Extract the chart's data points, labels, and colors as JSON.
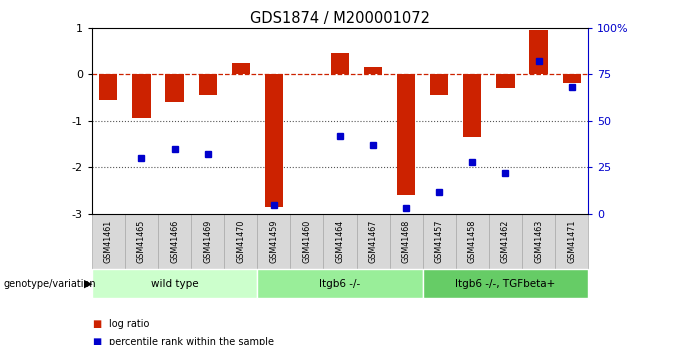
{
  "title": "GDS1874 / M200001072",
  "samples": [
    "GSM41461",
    "GSM41465",
    "GSM41466",
    "GSM41469",
    "GSM41470",
    "GSM41459",
    "GSM41460",
    "GSM41464",
    "GSM41467",
    "GSM41468",
    "GSM41457",
    "GSM41458",
    "GSM41462",
    "GSM41463",
    "GSM41471"
  ],
  "log_ratio": [
    -0.55,
    -0.95,
    -0.6,
    -0.45,
    0.25,
    -2.85,
    0.0,
    0.45,
    0.15,
    -2.6,
    -0.45,
    -1.35,
    -0.3,
    0.95,
    -0.2
  ],
  "percentile": [
    null,
    30,
    35,
    32,
    null,
    5,
    null,
    42,
    37,
    3,
    12,
    28,
    22,
    82,
    68
  ],
  "groups": [
    {
      "label": "wild type",
      "start": 0,
      "end": 5,
      "color": "#ccffcc"
    },
    {
      "label": "Itgb6 -/-",
      "start": 5,
      "end": 10,
      "color": "#99ee99"
    },
    {
      "label": "Itgb6 -/-, TGFbeta+",
      "start": 10,
      "end": 15,
      "color": "#66cc66"
    }
  ],
  "ylim": [
    -3,
    1
  ],
  "y2lim": [
    0,
    100
  ],
  "bar_color": "#cc2200",
  "dot_color": "#0000cc",
  "hline_color": "#cc2200",
  "dotted_line_color": "#555555",
  "bar_width": 0.55,
  "sample_box_color": "#d8d8d8",
  "sample_box_edge": "#aaaaaa"
}
